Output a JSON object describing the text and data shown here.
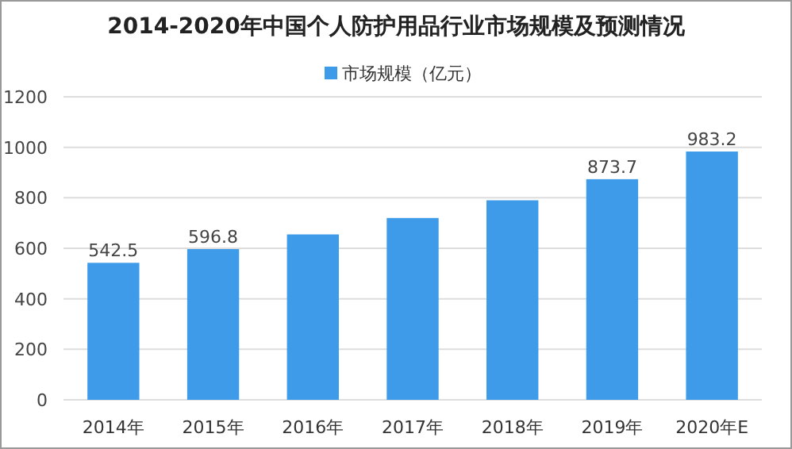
{
  "chart_data": {
    "type": "bar",
    "title": "2014-2020年中国个人防护用品行业市场规模及预测情况",
    "categories": [
      "2014年",
      "2015年",
      "2016年",
      "2017年",
      "2018年",
      "2019年",
      "2020年E"
    ],
    "series": [
      {
        "name": "市场规模（亿元）",
        "color": "#3d9be9",
        "values": [
          542.5,
          596.8,
          655,
          720,
          790,
          873.7,
          983.2
        ],
        "value_labels": [
          "542.5",
          "596.8",
          null,
          null,
          null,
          "873.7",
          "983.2"
        ]
      }
    ],
    "ylim": [
      0,
      1200
    ],
    "yticks": [
      0,
      200,
      400,
      600,
      800,
      1000,
      1200
    ],
    "grid": "y",
    "legend": "top"
  }
}
